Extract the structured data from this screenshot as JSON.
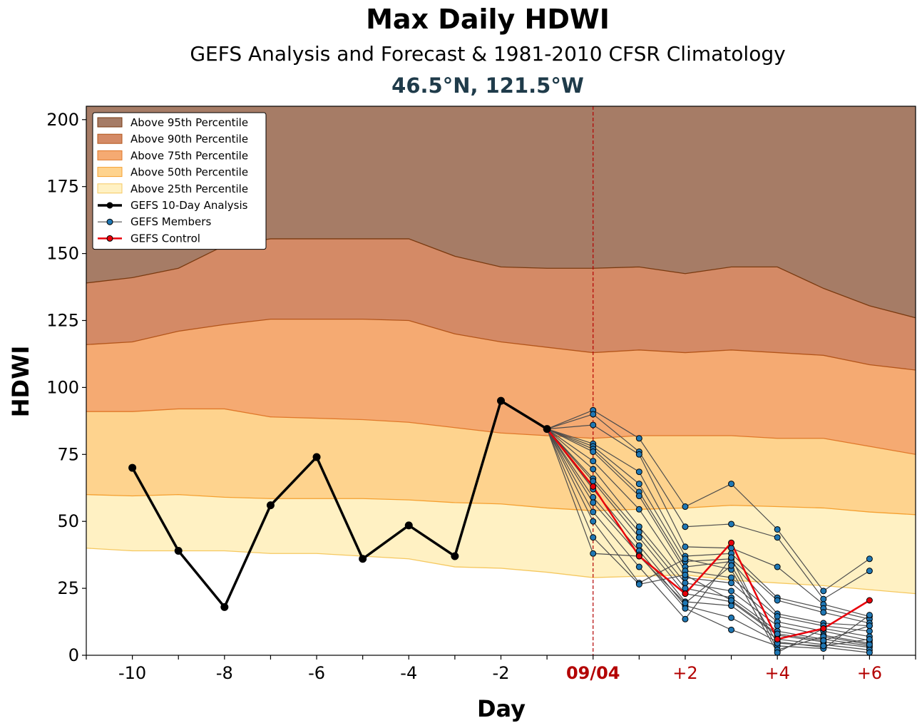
{
  "chart_data": {
    "type": "line",
    "title": "Max Daily HDWI",
    "subtitle": "GEFS Analysis and Forecast & 1981-2010 CFSR Climatology",
    "location": "46.5°N, 121.5°W",
    "xlabel": "Day",
    "ylabel": "HDWI",
    "xlim": [
      -11,
      7
    ],
    "ylim": [
      0,
      205
    ],
    "x_ticks": [
      {
        "x": -10,
        "label": "-10",
        "color": "#000000",
        "bold": false
      },
      {
        "x": -8,
        "label": "-8",
        "color": "#000000",
        "bold": false
      },
      {
        "x": -6,
        "label": "-6",
        "color": "#000000",
        "bold": false
      },
      {
        "x": -4,
        "label": "-4",
        "color": "#000000",
        "bold": false
      },
      {
        "x": -2,
        "label": "-2",
        "color": "#000000",
        "bold": false
      },
      {
        "x": 0,
        "label": "09/04",
        "color": "#b30000",
        "bold": true
      },
      {
        "x": 2,
        "label": "+2",
        "color": "#b30000",
        "bold": false
      },
      {
        "x": 4,
        "label": "+4",
        "color": "#b30000",
        "bold": false
      },
      {
        "x": 6,
        "label": "+6",
        "color": "#b30000",
        "bold": false
      }
    ],
    "y_ticks": [
      0,
      25,
      50,
      75,
      100,
      125,
      150,
      175,
      200
    ],
    "vertical_marker_x": 0,
    "percentile_x": [
      -11,
      -10,
      -9,
      -8,
      -7,
      -6,
      -5,
      -4,
      -3,
      -2,
      -1,
      0,
      1,
      2,
      3,
      4,
      5,
      6,
      7
    ],
    "percentile_bands": [
      {
        "name": "Above 95th Percentile",
        "fill": "#a67c66",
        "edge": "#7a3a10",
        "values": [
          139,
          141,
          144.5,
          153,
          155.5,
          155.5,
          155.5,
          155.5,
          149,
          145,
          144.5,
          144.5,
          145,
          142.5,
          145,
          145,
          137,
          130.5,
          126
        ]
      },
      {
        "name": "Above 90th Percentile",
        "fill": "#d48a66",
        "edge": "#b3551a",
        "values": [
          116,
          117,
          121,
          123.5,
          125.5,
          125.5,
          125.5,
          125,
          120,
          117,
          115,
          113,
          114,
          113,
          114,
          113,
          112,
          108.5,
          106.5
        ]
      },
      {
        "name": "Above 75th Percentile",
        "fill": "#f5aa72",
        "edge": "#e0782a",
        "values": [
          91,
          91,
          92,
          92,
          89,
          88.5,
          88,
          87,
          85,
          83,
          82,
          81,
          82,
          82,
          82,
          81,
          81,
          78,
          75
        ]
      },
      {
        "name": "Above 50th Percentile",
        "fill": "#fed38e",
        "edge": "#f5a030",
        "values": [
          60,
          59.5,
          60,
          59,
          58.5,
          58.5,
          58.5,
          58,
          57,
          56.5,
          55,
          54,
          54.5,
          55,
          56,
          55.5,
          55,
          53.5,
          52.5
        ]
      },
      {
        "name": "Above 25th Percentile",
        "fill": "#fff1c3",
        "edge": "#f5c860",
        "values": [
          40,
          39,
          39,
          39,
          38,
          38,
          37,
          36,
          33,
          32.5,
          31,
          29,
          29.5,
          30,
          28,
          27,
          26,
          24.5,
          23
        ]
      }
    ],
    "analysis": {
      "name": "GEFS 10-Day Analysis",
      "color": "#000000",
      "x": [
        -10,
        -9,
        -8,
        -7,
        -6,
        -5,
        -4,
        -3,
        -2,
        -1
      ],
      "y": [
        70,
        39,
        18,
        56,
        74,
        36,
        48.5,
        37,
        95,
        84.5
      ]
    },
    "control": {
      "name": "GEFS Control",
      "color": "#e8000b",
      "x": [
        -1,
        0,
        1,
        2,
        3,
        4,
        5,
        6
      ],
      "y": [
        84.5,
        63,
        37,
        23,
        42,
        6,
        10,
        20.5
      ]
    },
    "members": {
      "name": "GEFS Members",
      "color": "#1f77b4",
      "line_color": "#4d4d4d",
      "x": [
        -1,
        0,
        1,
        2,
        3,
        4,
        5,
        6
      ],
      "values": [
        [
          84.5,
          91.5,
          81,
          55.5,
          64,
          47,
          24,
          36
        ],
        [
          84.5,
          90,
          76,
          48,
          49,
          44,
          21,
          31.5
        ],
        [
          84.5,
          86,
          75,
          40.5,
          40,
          33,
          19,
          14.5
        ],
        [
          84.5,
          79,
          68.5,
          37,
          38,
          21.5,
          17.5,
          13.5
        ],
        [
          84.5,
          78,
          64,
          35,
          36,
          20.5,
          16,
          12
        ],
        [
          84.5,
          77,
          61,
          33,
          35,
          15.5,
          12,
          11
        ],
        [
          84.5,
          76,
          59.5,
          31.5,
          29,
          14.5,
          11,
          9
        ],
        [
          84.5,
          72.5,
          54.5,
          29,
          27,
          12.5,
          9,
          5.5
        ],
        [
          84.5,
          69.5,
          48,
          27,
          24,
          11,
          7.5,
          4.5
        ],
        [
          84.5,
          66,
          46,
          25,
          21.5,
          9,
          6,
          3.5
        ],
        [
          84.5,
          65,
          44,
          23,
          20,
          7.5,
          5,
          3
        ],
        [
          84.5,
          62,
          41,
          20,
          18.5,
          6,
          4,
          2
        ],
        [
          84.5,
          59,
          39,
          18.5,
          14,
          5,
          3,
          1
        ],
        [
          84.5,
          57,
          37.5,
          17.5,
          9.5,
          3.5,
          2.5,
          15
        ],
        [
          84.5,
          53.5,
          33,
          13.5,
          36.5,
          2,
          7,
          4
        ],
        [
          84.5,
          50,
          27,
          36,
          32,
          1,
          10,
          7
        ],
        [
          84.5,
          44,
          26.5,
          30,
          20.5,
          8,
          5.5,
          11
        ],
        [
          84.5,
          38,
          37,
          19.5,
          33.5,
          4.5,
          3.5,
          6
        ]
      ]
    },
    "legend": {
      "placement": "top-left",
      "entries": [
        {
          "label": "Above 95th Percentile",
          "kind": "patch",
          "fill": "#a67c66",
          "edge": "#7a3a10"
        },
        {
          "label": "Above 90th Percentile",
          "kind": "patch",
          "fill": "#d48a66",
          "edge": "#b3551a"
        },
        {
          "label": "Above 75th Percentile",
          "kind": "patch",
          "fill": "#f5aa72",
          "edge": "#e0782a"
        },
        {
          "label": "Above 50th Percentile",
          "kind": "patch",
          "fill": "#fed38e",
          "edge": "#f5a030"
        },
        {
          "label": "Above 25th Percentile",
          "kind": "patch",
          "fill": "#fff1c3",
          "edge": "#f5c860"
        },
        {
          "label": "GEFS 10-Day Analysis",
          "kind": "line",
          "color": "#000000",
          "marker": "#000000"
        },
        {
          "label": "GEFS Members",
          "kind": "line",
          "color": "#4d4d4d",
          "marker": "#1f77b4"
        },
        {
          "label": "GEFS Control",
          "kind": "line",
          "color": "#e8000b",
          "marker": "#e8000b"
        }
      ]
    }
  }
}
